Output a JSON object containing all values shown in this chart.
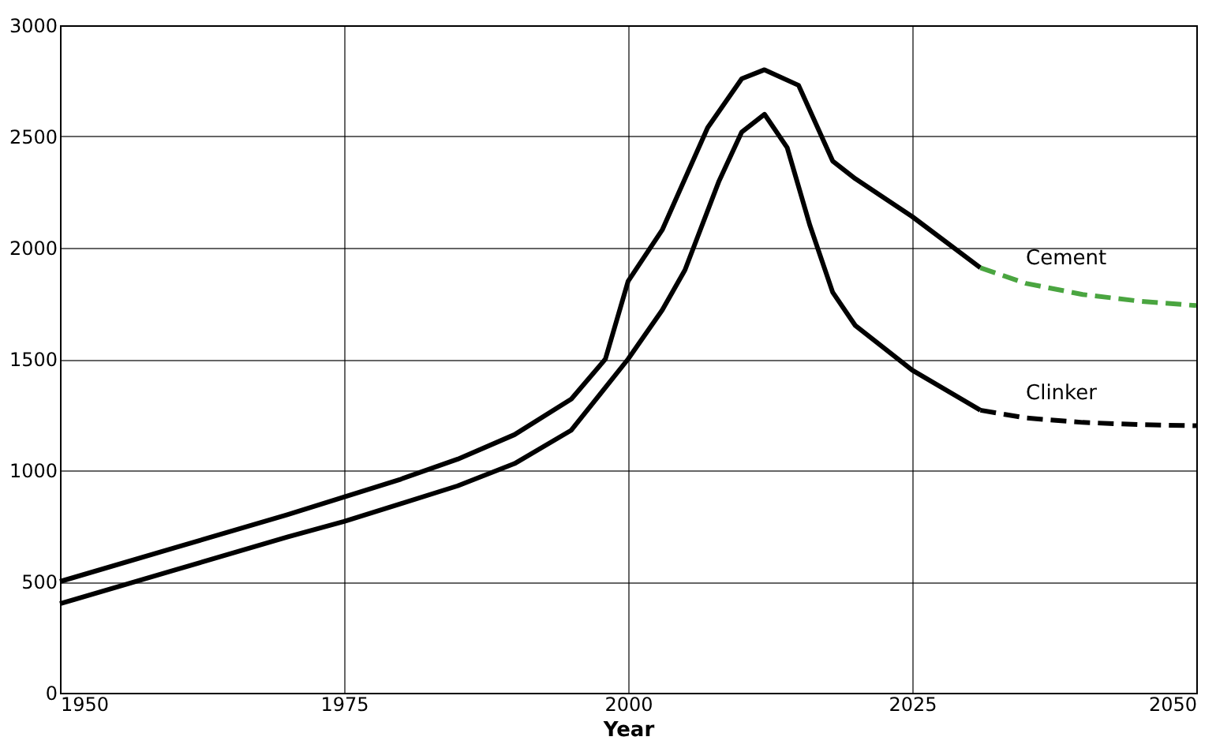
{
  "chart_data": {
    "type": "line",
    "xlabel": "Year",
    "xlim": [
      1950,
      2050
    ],
    "ylim": [
      0,
      3000
    ],
    "xticks": [
      1950,
      1975,
      2000,
      2025,
      2050
    ],
    "yticks": [
      0,
      500,
      1000,
      1500,
      2000,
      2500,
      3000
    ],
    "grid": true,
    "marker": "none",
    "series": [
      {
        "color": "#000000",
        "line_style": "solid",
        "x": [
          1950,
          1960,
          1970,
          1975,
          1980,
          1985,
          1990,
          1995,
          1998,
          2000,
          2003,
          2007,
          2010,
          2012,
          2015,
          2018,
          2020,
          2025,
          2031
        ],
        "values": [
          500,
          650,
          800,
          880,
          960,
          1050,
          1160,
          1320,
          1500,
          1850,
          2080,
          2540,
          2760,
          2800,
          2730,
          2390,
          2310,
          2140,
          1910
        ]
      },
      {
        "name": "Cement",
        "color": "#4aa540",
        "line_style": "dashed",
        "x": [
          2031,
          2035,
          2040,
          2045,
          2050
        ],
        "values": [
          1910,
          1840,
          1790,
          1760,
          1740
        ]
      },
      {
        "color": "#000000",
        "line_style": "solid",
        "x": [
          1950,
          1960,
          1970,
          1975,
          1980,
          1985,
          1990,
          1995,
          2000,
          2003,
          2005,
          2008,
          2010,
          2012,
          2014,
          2016,
          2018,
          2020,
          2025,
          2031
        ],
        "values": [
          400,
          550,
          700,
          770,
          850,
          930,
          1030,
          1180,
          1500,
          1720,
          1900,
          2300,
          2520,
          2600,
          2450,
          2100,
          1800,
          1650,
          1450,
          1270
        ]
      },
      {
        "name": "Clinker",
        "color": "#000000",
        "line_style": "dashed",
        "x": [
          2031,
          2035,
          2040,
          2045,
          2050
        ],
        "values": [
          1270,
          1235,
          1215,
          1205,
          1200
        ]
      }
    ]
  }
}
